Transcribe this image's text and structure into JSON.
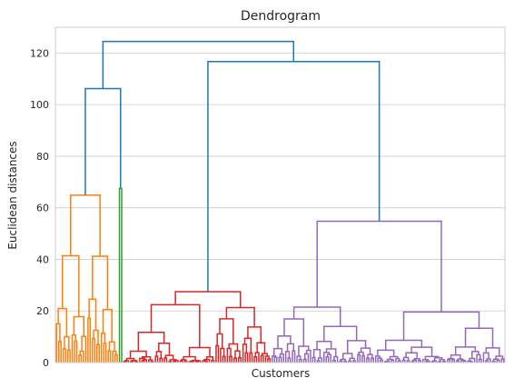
{
  "chart_data": {
    "type": "dendrogram",
    "title": "Dendrogram",
    "xlabel": "Customers",
    "ylabel": "Euclidean distances",
    "ylim": [
      0,
      130
    ],
    "y_ticks": [
      0,
      20,
      40,
      60,
      80,
      100,
      120
    ],
    "grid": "horizontal",
    "leaf_count": 200,
    "colors": {
      "above_threshold": "#1f77b4",
      "cluster_1": "#ff7f0e",
      "cluster_2": "#2ca02c",
      "cluster_3": "#d62728",
      "cluster_4": "#9467bd",
      "grid": "#cccccc",
      "frame": "#cccccc"
    },
    "top_merges": [
      {
        "name": "root",
        "height": 124.5,
        "color": "above_threshold",
        "children": [
          "left-group",
          "right-group"
        ]
      },
      {
        "name": "left-group",
        "height": 106.2,
        "color": "above_threshold",
        "children": [
          "cluster_1",
          "cluster_2"
        ]
      },
      {
        "name": "right-group",
        "height": 116.7,
        "color": "above_threshold",
        "children": [
          "cluster_3",
          "cluster_4"
        ]
      }
    ],
    "clusters": [
      {
        "id": "cluster_1",
        "leaf_range": [
          0,
          28
        ],
        "height": 64.9,
        "submerges": [
          {
            "height": 41.4
          },
          {
            "height": 41.2
          },
          {
            "height": 20.9
          },
          {
            "height": 17.8
          },
          {
            "height": 15.0
          },
          {
            "height": 10.0
          },
          {
            "height": 8.5
          }
        ]
      },
      {
        "id": "cluster_2",
        "leaf_range": [
          28,
          30
        ],
        "height": 67.5,
        "submerges": [
          {
            "height": 31.5
          }
        ]
      },
      {
        "id": "cluster_3",
        "leaf_range": [
          30,
          96
        ],
        "height": 27.5,
        "submerges": [
          {
            "height": 22.4
          },
          {
            "height": 21.3
          },
          {
            "height": 11.7
          },
          {
            "height": 5.8
          },
          {
            "height": 4.4
          }
        ]
      },
      {
        "id": "cluster_4",
        "leaf_range": [
          96,
          200
        ],
        "height": 54.8,
        "submerges": [
          {
            "height": 21.5
          },
          {
            "height": 19.6
          },
          {
            "height": 16.9
          },
          {
            "height": 14.0
          },
          {
            "height": 10.3
          },
          {
            "height": 6.3
          },
          {
            "height": 5.4
          }
        ]
      }
    ]
  }
}
